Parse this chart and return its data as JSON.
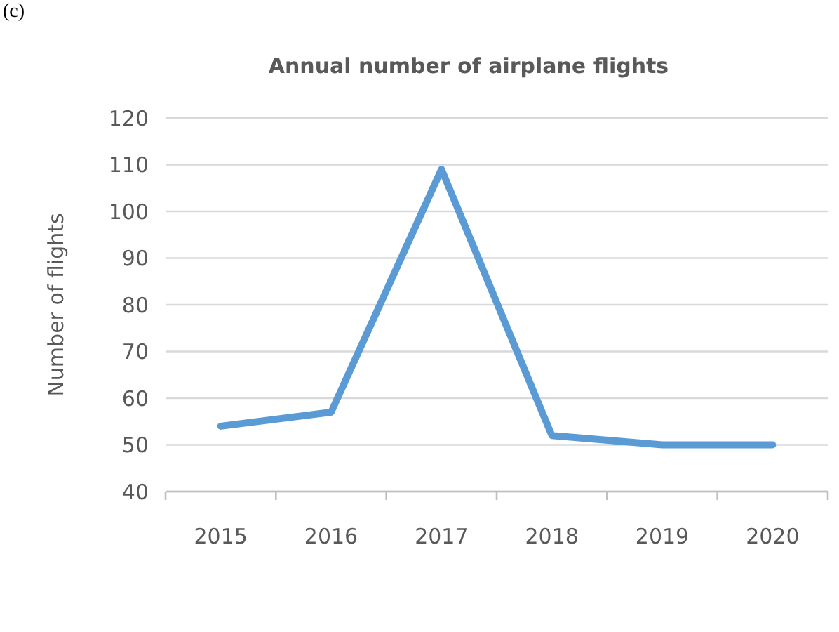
{
  "chart_data": {
    "type": "line",
    "title": "Annual number of airplane flights",
    "ylabel": "Number of flights",
    "annotations": [
      "(c)"
    ],
    "categories": [
      "2015",
      "2016",
      "2017",
      "2018",
      "2019",
      "2020"
    ],
    "series": [
      {
        "color": "#5b9bd5",
        "values": [
          54,
          57,
          109,
          52,
          50,
          50
        ]
      }
    ],
    "ylim": [
      40,
      120
    ],
    "yticks": [
      40,
      50,
      60,
      70,
      80,
      90,
      100,
      110,
      120
    ],
    "grid": "y",
    "marker": "none",
    "line_style": "solid"
  }
}
